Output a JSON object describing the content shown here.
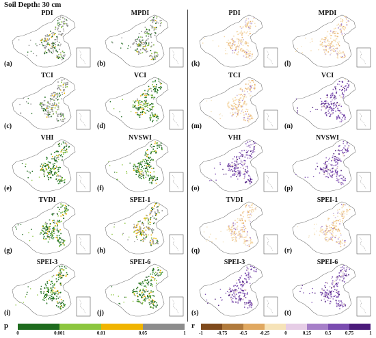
{
  "title": "Soil Depth: 30 cm",
  "panels": [
    {
      "letter": "(a)",
      "name": "PDI",
      "side": "p",
      "pattern": "gray"
    },
    {
      "letter": "(b)",
      "name": "MPDI",
      "side": "p",
      "pattern": "gray"
    },
    {
      "letter": "(c)",
      "name": "TCI",
      "side": "p",
      "pattern": "gray"
    },
    {
      "letter": "(d)",
      "name": "VCI",
      "side": "p",
      "pattern": "green"
    },
    {
      "letter": "(e)",
      "name": "VHI",
      "side": "p",
      "pattern": "green"
    },
    {
      "letter": "(f)",
      "name": "NVSWI",
      "side": "p",
      "pattern": "green"
    },
    {
      "letter": "(g)",
      "name": "TVDI",
      "side": "p",
      "pattern": "green"
    },
    {
      "letter": "(h)",
      "name": "SPEI-1",
      "side": "p",
      "pattern": "mixed"
    },
    {
      "letter": "(i)",
      "name": "SPEI-3",
      "side": "p",
      "pattern": "green"
    },
    {
      "letter": "(j)",
      "name": "SPEI-6",
      "side": "p",
      "pattern": "green"
    },
    {
      "letter": "(k)",
      "name": "PDI",
      "side": "r",
      "pattern": "orange"
    },
    {
      "letter": "(l)",
      "name": "MPDI",
      "side": "r",
      "pattern": "orange"
    },
    {
      "letter": "(m)",
      "name": "TCI",
      "side": "r",
      "pattern": "orange"
    },
    {
      "letter": "(n)",
      "name": "VCI",
      "side": "r",
      "pattern": "purple"
    },
    {
      "letter": "(o)",
      "name": "VHI",
      "side": "r",
      "pattern": "purple"
    },
    {
      "letter": "(p)",
      "name": "NVSWI",
      "side": "r",
      "pattern": "purple"
    },
    {
      "letter": "(q)",
      "name": "TVDI",
      "side": "r",
      "pattern": "orange"
    },
    {
      "letter": "(r)",
      "name": "SPEI-1",
      "side": "r",
      "pattern": "orange"
    },
    {
      "letter": "(s)",
      "name": "SPEI-3",
      "side": "r",
      "pattern": "purple"
    },
    {
      "letter": "(t)",
      "name": "SPEI-6",
      "side": "r",
      "pattern": "purple"
    }
  ],
  "legend_p": {
    "symbol": "p",
    "ticks": [
      "0",
      "0.001",
      "0.01",
      "0.05",
      "1"
    ],
    "colors": [
      "#1e6b1e",
      "#8cc63f",
      "#f0b400",
      "#8c8c8c"
    ]
  },
  "legend_r": {
    "symbol": "r",
    "ticks": [
      "-1",
      "-0.75",
      "-0.5",
      "-0.25",
      "0",
      "0.25",
      "0.5",
      "0.75",
      "1"
    ],
    "colors": [
      "#7f4a1c",
      "#b07a3c",
      "#e0a860",
      "#f6e3b8",
      "#e6cde6",
      "#a67fc8",
      "#7a4cb0",
      "#4a1a7a"
    ]
  },
  "palettes": {
    "gray": [
      "#8c8c8c",
      "#a0a0a0",
      "#1e6b1e",
      "#8cc63f",
      "#f0b400"
    ],
    "green": [
      "#1e6b1e",
      "#2f8a2f",
      "#8cc63f",
      "#f0b400",
      "#8c8c8c"
    ],
    "mixed": [
      "#8c8c8c",
      "#f0b400",
      "#8cc63f",
      "#1e6b1e",
      "#d9c24a"
    ],
    "orange": [
      "#f6d7a6",
      "#e9b36f",
      "#f3e4c4",
      "#c9b5d9",
      "#a67fc8"
    ],
    "purple": [
      "#7a4cb0",
      "#a67fc8",
      "#4a1a7a",
      "#c9b5d9",
      "#f3e4c4"
    ]
  }
}
